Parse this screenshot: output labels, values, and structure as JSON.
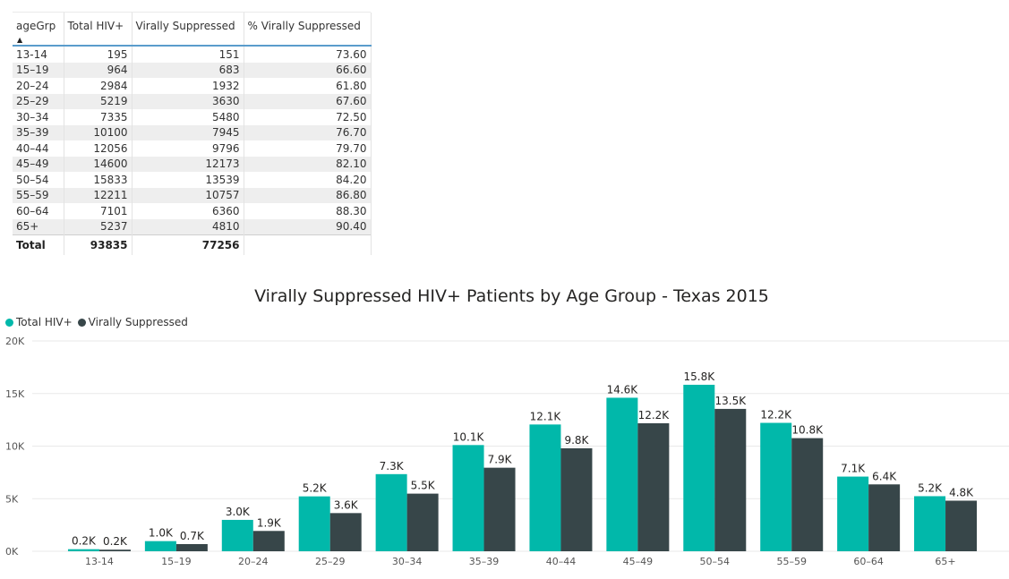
{
  "table": {
    "headers": [
      "ageGrp",
      "Total HIV+",
      "Virally Suppressed",
      "% Virally Suppressed"
    ],
    "sort_indicator": "▲",
    "rows": [
      [
        "13-14",
        "195",
        "151",
        "73.60"
      ],
      [
        "15–19",
        "964",
        "683",
        "66.60"
      ],
      [
        "20–24",
        "2984",
        "1932",
        "61.80"
      ],
      [
        "25–29",
        "5219",
        "3630",
        "67.60"
      ],
      [
        "30–34",
        "7335",
        "5480",
        "72.50"
      ],
      [
        "35–39",
        "10100",
        "7945",
        "76.70"
      ],
      [
        "40–44",
        "12056",
        "9796",
        "79.70"
      ],
      [
        "45–49",
        "14600",
        "12173",
        "82.10"
      ],
      [
        "50–54",
        "15833",
        "13539",
        "84.20"
      ],
      [
        "55–59",
        "12211",
        "10757",
        "86.80"
      ],
      [
        "60–64",
        "7101",
        "6360",
        "88.30"
      ],
      [
        "65+",
        "5237",
        "4810",
        "90.40"
      ]
    ],
    "total": [
      "Total",
      "93835",
      "77256",
      ""
    ]
  },
  "chart_data": {
    "type": "bar",
    "title": "Virally Suppressed HIV+ Patients by Age Group - Texas 2015",
    "categories": [
      "13-14",
      "15–19",
      "20–24",
      "25–29",
      "30–34",
      "35–39",
      "40–44",
      "45–49",
      "50–54",
      "55–59",
      "60–64",
      "65+"
    ],
    "series": [
      {
        "name": "Total HIV+",
        "color": "#01b8aa",
        "values": [
          195,
          964,
          2984,
          5219,
          7335,
          10100,
          12056,
          14600,
          15833,
          12211,
          7101,
          5237
        ],
        "labels": [
          "0.2K",
          "1.0K",
          "3.0K",
          "5.2K",
          "7.3K",
          "10.1K",
          "12.1K",
          "14.6K",
          "15.8K",
          "12.2K",
          "7.1K",
          "5.2K"
        ]
      },
      {
        "name": "Virally Suppressed",
        "color": "#374649",
        "values": [
          151,
          683,
          1932,
          3630,
          5480,
          7945,
          9796,
          12173,
          13539,
          10757,
          6360,
          4810
        ],
        "labels": [
          "0.2K",
          "0.7K",
          "1.9K",
          "3.6K",
          "5.5K",
          "7.9K",
          "9.8K",
          "12.2K",
          "13.5K",
          "10.8K",
          "6.4K",
          "4.8K"
        ]
      }
    ],
    "ylim": [
      0,
      20000
    ],
    "yticks": [
      0,
      5000,
      10000,
      15000,
      20000
    ],
    "ytick_labels": [
      "0K",
      "5K",
      "10K",
      "15K",
      "20K"
    ],
    "grid": true,
    "legend": "top-left"
  }
}
